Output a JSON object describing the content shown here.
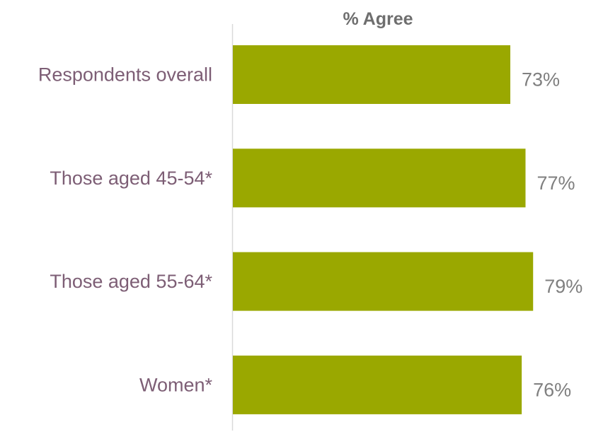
{
  "chart_data": {
    "type": "bar",
    "orientation": "horizontal",
    "title": "% Agree",
    "categories": [
      "Respondents overall",
      "Those aged 45-54*",
      "Those aged 55-64*",
      "Women*"
    ],
    "values": [
      73,
      77,
      79,
      76
    ],
    "value_labels": [
      "73%",
      "77%",
      "79%",
      "76%"
    ],
    "unit": "%",
    "xlim": [
      0,
      100
    ],
    "grid": false,
    "legend": "none",
    "colors": {
      "bar": "#9aa800",
      "category_text": "#7d5e75",
      "value_text": "#7f7f7f",
      "title_text": "#6e6e6e",
      "axis": "#d9d9d9"
    }
  }
}
